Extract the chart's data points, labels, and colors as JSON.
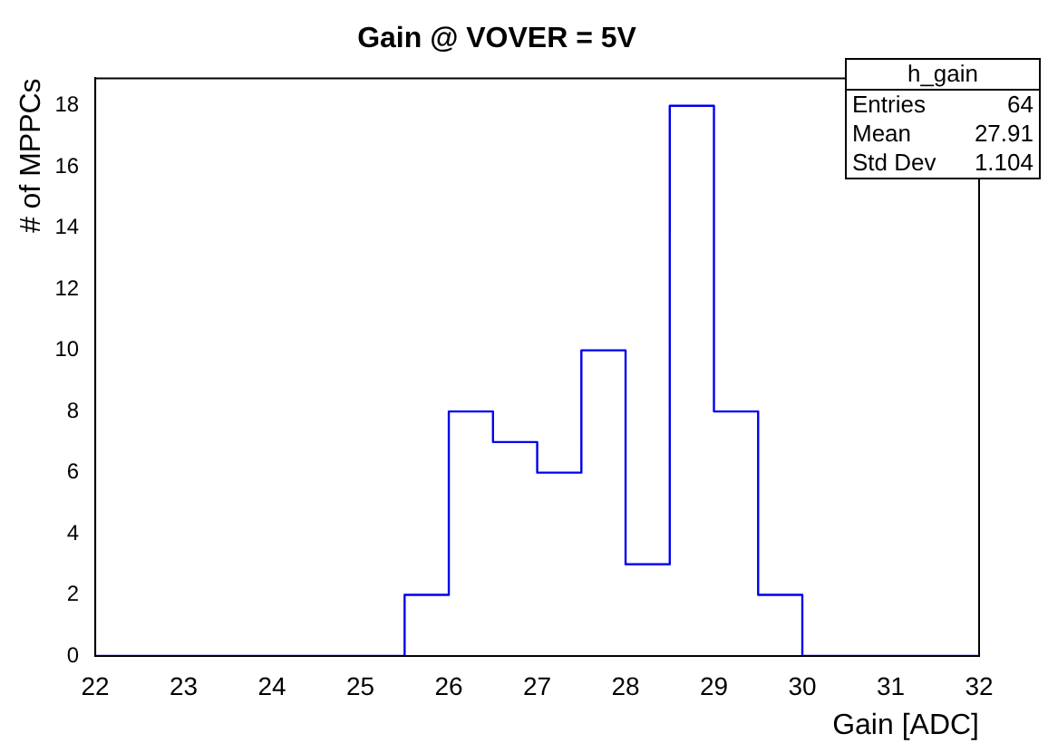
{
  "chart_data": {
    "type": "histogram",
    "title": "Gain @ VOVER = 5V",
    "xlabel": "Gain [ADC]",
    "ylabel": "# of MPPCs",
    "bins": [
      22,
      22.5,
      23,
      23.5,
      24,
      24.5,
      25,
      25.5,
      26,
      26.5,
      27,
      27.5,
      28,
      28.5,
      29,
      29.5,
      30,
      30.5,
      31,
      31.5,
      32
    ],
    "values": [
      0,
      0,
      0,
      0,
      0,
      0,
      0,
      2,
      8,
      7,
      6,
      10,
      3,
      18,
      8,
      2,
      0,
      0,
      0,
      0
    ],
    "color": "#0000ee",
    "xlim": [
      22,
      32
    ],
    "xticks": [
      22,
      23,
      24,
      25,
      26,
      27,
      28,
      29,
      30,
      31,
      32
    ],
    "ylim": [
      0,
      18.9
    ],
    "yticks": [
      0,
      2,
      4,
      6,
      8,
      10,
      12,
      14,
      16,
      18
    ],
    "grid": false,
    "legend": false,
    "annotations": [
      "h_gain",
      "Entries",
      "64",
      "Mean",
      "27.91",
      "Std Dev",
      "1.104"
    ]
  }
}
